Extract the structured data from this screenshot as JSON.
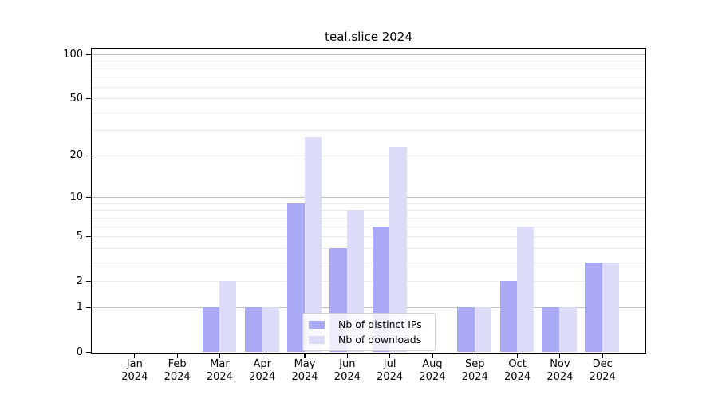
{
  "title": "teal.slice 2024",
  "chart_data": {
    "type": "bar",
    "title": "teal.slice 2024",
    "categories": [
      "Jan 2024",
      "Feb 2024",
      "Mar 2024",
      "Apr 2024",
      "May 2024",
      "Jun 2024",
      "Jul 2024",
      "Aug 2024",
      "Sep 2024",
      "Oct 2024",
      "Nov 2024",
      "Dec 2024"
    ],
    "series": [
      {
        "name": "Nb of distinct IPs",
        "color": "#a9a9f5",
        "values": [
          0,
          0,
          1,
          1,
          9,
          4,
          6,
          0,
          1,
          2,
          1,
          3
        ]
      },
      {
        "name": "Nb of downloads",
        "color": "#dcdcf9",
        "values": [
          0,
          0,
          2,
          1,
          27,
          8,
          23,
          0,
          1,
          6,
          1,
          3
        ]
      }
    ],
    "xlabel": "",
    "ylabel": "",
    "y_scale": "log1p",
    "ylim": [
      0,
      100
    ],
    "y_ticks": [
      0,
      1,
      2,
      5,
      10,
      20,
      50,
      100
    ],
    "y_tick_labels": [
      "0",
      "1",
      "2",
      "5",
      "10",
      "20",
      "50",
      "100"
    ],
    "major_gridlines": [
      1,
      10,
      100
    ],
    "minor_gridlines": [
      2,
      3,
      4,
      5,
      6,
      7,
      8,
      9,
      20,
      30,
      40,
      50,
      60,
      70,
      80,
      90
    ],
    "grid": true,
    "legend_position": "lower center inside plot"
  },
  "legend": {
    "items": [
      "Nb of distinct IPs",
      "Nb of downloads"
    ]
  },
  "colors": {
    "bar_distinct_ips": "#a9a9f5",
    "bar_downloads": "#dcdcf9",
    "grid_major": "#c0c0c0",
    "grid_minor": "#ececec",
    "axis": "#000000",
    "background": "#ffffff",
    "legend_border": "#cccccc"
  }
}
